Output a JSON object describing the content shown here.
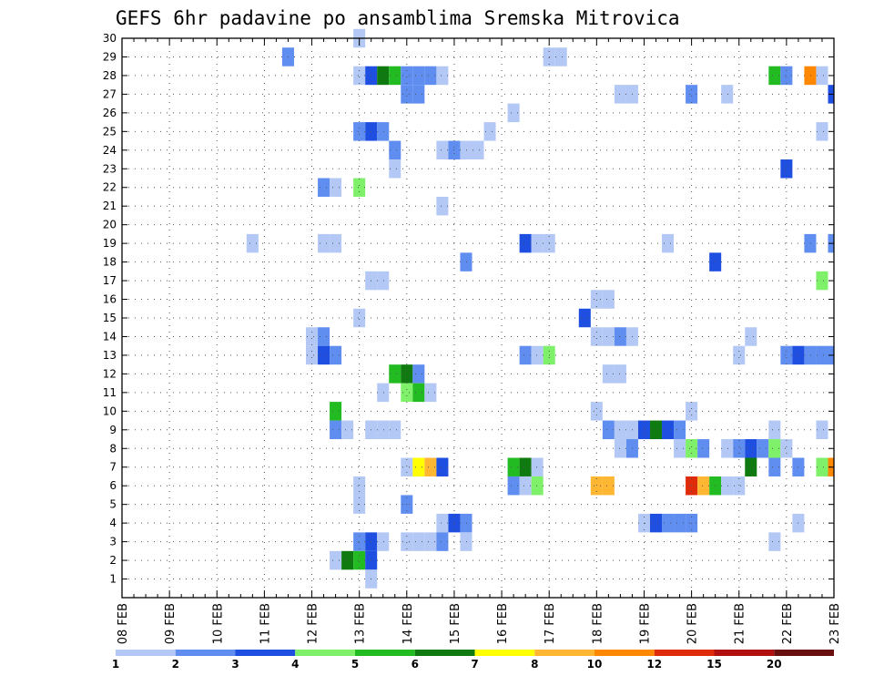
{
  "chart_data": {
    "type": "heatmap",
    "title": "GEFS 6hr padavine po ansamblima Sremska Mitrovica",
    "x_ticks": [
      "08 FEB",
      "09 FEB",
      "10 FEB",
      "11 FEB",
      "12 FEB",
      "13 FEB",
      "14 FEB",
      "15 FEB",
      "16 FEB",
      "17 FEB",
      "18 FEB",
      "19 FEB",
      "20 FEB",
      "21 FEB",
      "22 FEB",
      "23 FEB"
    ],
    "y_ticks": [
      1,
      2,
      3,
      4,
      5,
      6,
      7,
      8,
      9,
      10,
      11,
      12,
      13,
      14,
      15,
      16,
      17,
      18,
      19,
      20,
      21,
      22,
      23,
      24,
      25,
      26,
      27,
      28,
      29,
      30
    ],
    "x_range": [
      "08 FEB 00Z",
      "23 FEB 00Z"
    ],
    "x_step_hours": 6,
    "y_range": [
      0,
      30
    ],
    "grid": true,
    "colorbar": {
      "labels": [
        "1",
        "2",
        "3",
        "4",
        "5",
        "6",
        "7",
        "8",
        "10",
        "12",
        "15",
        "20"
      ],
      "bounds": [
        1,
        2,
        3,
        4,
        5,
        6,
        7,
        8,
        10,
        12,
        15,
        20,
        30
      ],
      "colors": [
        "#b4c8f5",
        "#5f8ef0",
        "#1e4fe0",
        "#7ff06a",
        "#22bb22",
        "#0f7a0f",
        "#ffff00",
        "#ffb733",
        "#ff8800",
        "#e02b0b",
        "#b01010",
        "#6a0f0f"
      ]
    },
    "cells": [
      {
        "m": 30,
        "t": 20,
        "v": 1.3
      },
      {
        "m": 29,
        "t": 14,
        "v": 2.5
      },
      {
        "m": 29,
        "t": 36,
        "v": 1.3
      },
      {
        "m": 29,
        "t": 37,
        "v": 1.3
      },
      {
        "m": 28,
        "t": 20,
        "v": 1.5
      },
      {
        "m": 28,
        "t": 21,
        "v": 3.3
      },
      {
        "m": 28,
        "t": 22,
        "v": 6.5
      },
      {
        "m": 28,
        "t": 23,
        "v": 5.5
      },
      {
        "m": 28,
        "t": 24,
        "v": 2.5
      },
      {
        "m": 28,
        "t": 25,
        "v": 2.5
      },
      {
        "m": 28,
        "t": 26,
        "v": 2.5
      },
      {
        "m": 28,
        "t": 27,
        "v": 1.3
      },
      {
        "m": 28,
        "t": 55,
        "v": 5.5
      },
      {
        "m": 28,
        "t": 56,
        "v": 2.5
      },
      {
        "m": 28,
        "t": 58,
        "v": 11
      },
      {
        "m": 28,
        "t": 59,
        "v": 1.3
      },
      {
        "m": 27,
        "t": 24,
        "v": 2.5
      },
      {
        "m": 27,
        "t": 25,
        "v": 2.5
      },
      {
        "m": 27,
        "t": 42,
        "v": 1.3
      },
      {
        "m": 27,
        "t": 43,
        "v": 1.3
      },
      {
        "m": 27,
        "t": 48,
        "v": 2.5
      },
      {
        "m": 27,
        "t": 51,
        "v": 1.3
      },
      {
        "m": 27,
        "t": 60,
        "v": 3.3
      },
      {
        "m": 26,
        "t": 33,
        "v": 1.3
      },
      {
        "m": 25,
        "t": 20,
        "v": 2.5
      },
      {
        "m": 25,
        "t": 21,
        "v": 3.3
      },
      {
        "m": 25,
        "t": 22,
        "v": 2.5
      },
      {
        "m": 25,
        "t": 31,
        "v": 1.3
      },
      {
        "m": 25,
        "t": 59,
        "v": 1.3
      },
      {
        "m": 24,
        "t": 23,
        "v": 2.5
      },
      {
        "m": 24,
        "t": 27,
        "v": 1.3
      },
      {
        "m": 24,
        "t": 28,
        "v": 2.5
      },
      {
        "m": 24,
        "t": 29,
        "v": 1.3
      },
      {
        "m": 24,
        "t": 30,
        "v": 1.3
      },
      {
        "m": 23,
        "t": 23,
        "v": 1.3
      },
      {
        "m": 23,
        "t": 56,
        "v": 3.3
      },
      {
        "m": 22,
        "t": 17,
        "v": 2.5
      },
      {
        "m": 22,
        "t": 18,
        "v": 1.3
      },
      {
        "m": 22,
        "t": 20,
        "v": 4.5
      },
      {
        "m": 21,
        "t": 27,
        "v": 1.3
      },
      {
        "m": 19,
        "t": 11,
        "v": 1.3
      },
      {
        "m": 19,
        "t": 17,
        "v": 1.3
      },
      {
        "m": 19,
        "t": 18,
        "v": 1.3
      },
      {
        "m": 19,
        "t": 34,
        "v": 3.3
      },
      {
        "m": 19,
        "t": 35,
        "v": 1.3
      },
      {
        "m": 19,
        "t": 36,
        "v": 1.3
      },
      {
        "m": 19,
        "t": 46,
        "v": 1.3
      },
      {
        "m": 19,
        "t": 58,
        "v": 2.5
      },
      {
        "m": 19,
        "t": 60,
        "v": 2.5
      },
      {
        "m": 18,
        "t": 29,
        "v": 2.5
      },
      {
        "m": 18,
        "t": 50,
        "v": 3.3
      },
      {
        "m": 17,
        "t": 21,
        "v": 1.3
      },
      {
        "m": 17,
        "t": 22,
        "v": 1.3
      },
      {
        "m": 17,
        "t": 59,
        "v": 4.5
      },
      {
        "m": 16,
        "t": 40,
        "v": 1.3
      },
      {
        "m": 16,
        "t": 41,
        "v": 1.3
      },
      {
        "m": 15,
        "t": 20,
        "v": 1.3
      },
      {
        "m": 15,
        "t": 39,
        "v": 3.3
      },
      {
        "m": 14,
        "t": 16,
        "v": 1.3
      },
      {
        "m": 14,
        "t": 17,
        "v": 2.5
      },
      {
        "m": 14,
        "t": 40,
        "v": 1.3
      },
      {
        "m": 14,
        "t": 41,
        "v": 1.3
      },
      {
        "m": 14,
        "t": 42,
        "v": 2.5
      },
      {
        "m": 14,
        "t": 43,
        "v": 1.3
      },
      {
        "m": 14,
        "t": 53,
        "v": 1.3
      },
      {
        "m": 13,
        "t": 16,
        "v": 1.3
      },
      {
        "m": 13,
        "t": 17,
        "v": 3.3
      },
      {
        "m": 13,
        "t": 18,
        "v": 2.5
      },
      {
        "m": 13,
        "t": 34,
        "v": 2.5
      },
      {
        "m": 13,
        "t": 35,
        "v": 1.3
      },
      {
        "m": 13,
        "t": 36,
        "v": 4.5
      },
      {
        "m": 13,
        "t": 52,
        "v": 1.3
      },
      {
        "m": 13,
        "t": 56,
        "v": 2.5
      },
      {
        "m": 13,
        "t": 57,
        "v": 3.3
      },
      {
        "m": 13,
        "t": 58,
        "v": 2.5
      },
      {
        "m": 13,
        "t": 59,
        "v": 2.5
      },
      {
        "m": 13,
        "t": 60,
        "v": 2.5
      },
      {
        "m": 12,
        "t": 23,
        "v": 5.5
      },
      {
        "m": 12,
        "t": 24,
        "v": 6.5
      },
      {
        "m": 12,
        "t": 25,
        "v": 2.5
      },
      {
        "m": 12,
        "t": 41,
        "v": 1.3
      },
      {
        "m": 12,
        "t": 42,
        "v": 1.3
      },
      {
        "m": 11,
        "t": 22,
        "v": 1.3
      },
      {
        "m": 11,
        "t": 24,
        "v": 4.5
      },
      {
        "m": 11,
        "t": 25,
        "v": 5.5
      },
      {
        "m": 11,
        "t": 26,
        "v": 1.3
      },
      {
        "m": 10,
        "t": 18,
        "v": 5.5
      },
      {
        "m": 10,
        "t": 40,
        "v": 1.3
      },
      {
        "m": 10,
        "t": 48,
        "v": 1.3
      },
      {
        "m": 9,
        "t": 18,
        "v": 2.5
      },
      {
        "m": 9,
        "t": 19,
        "v": 1.3
      },
      {
        "m": 9,
        "t": 21,
        "v": 1.3
      },
      {
        "m": 9,
        "t": 22,
        "v": 1.3
      },
      {
        "m": 9,
        "t": 23,
        "v": 1.3
      },
      {
        "m": 9,
        "t": 41,
        "v": 2.5
      },
      {
        "m": 9,
        "t": 42,
        "v": 1.3
      },
      {
        "m": 9,
        "t": 43,
        "v": 1.3
      },
      {
        "m": 9,
        "t": 44,
        "v": 3.3
      },
      {
        "m": 9,
        "t": 45,
        "v": 6.5
      },
      {
        "m": 9,
        "t": 46,
        "v": 3.3
      },
      {
        "m": 9,
        "t": 47,
        "v": 2.5
      },
      {
        "m": 9,
        "t": 55,
        "v": 1.3
      },
      {
        "m": 9,
        "t": 59,
        "v": 1.3
      },
      {
        "m": 8,
        "t": 42,
        "v": 1.3
      },
      {
        "m": 8,
        "t": 43,
        "v": 2.5
      },
      {
        "m": 8,
        "t": 47,
        "v": 1.3
      },
      {
        "m": 8,
        "t": 48,
        "v": 4.5
      },
      {
        "m": 8,
        "t": 49,
        "v": 2.5
      },
      {
        "m": 8,
        "t": 51,
        "v": 1.3
      },
      {
        "m": 8,
        "t": 52,
        "v": 2.5
      },
      {
        "m": 8,
        "t": 53,
        "v": 3.3
      },
      {
        "m": 8,
        "t": 54,
        "v": 2.5
      },
      {
        "m": 8,
        "t": 55,
        "v": 4.5
      },
      {
        "m": 8,
        "t": 56,
        "v": 1.3
      },
      {
        "m": 7,
        "t": 24,
        "v": 1.3
      },
      {
        "m": 7,
        "t": 25,
        "v": 7.5
      },
      {
        "m": 7,
        "t": 26,
        "v": 9
      },
      {
        "m": 7,
        "t": 27,
        "v": 3.3
      },
      {
        "m": 7,
        "t": 33,
        "v": 5.5
      },
      {
        "m": 7,
        "t": 34,
        "v": 6.5
      },
      {
        "m": 7,
        "t": 35,
        "v": 1.3
      },
      {
        "m": 7,
        "t": 53,
        "v": 6.5
      },
      {
        "m": 7,
        "t": 55,
        "v": 2.5
      },
      {
        "m": 7,
        "t": 57,
        "v": 2.5
      },
      {
        "m": 7,
        "t": 59,
        "v": 4.5
      },
      {
        "m": 7,
        "t": 60,
        "v": 11
      },
      {
        "m": 6,
        "t": 20,
        "v": 1.3
      },
      {
        "m": 6,
        "t": 33,
        "v": 2.5
      },
      {
        "m": 6,
        "t": 34,
        "v": 1.3
      },
      {
        "m": 6,
        "t": 35,
        "v": 4.5
      },
      {
        "m": 6,
        "t": 40,
        "v": 9
      },
      {
        "m": 6,
        "t": 41,
        "v": 9
      },
      {
        "m": 6,
        "t": 48,
        "v": 13
      },
      {
        "m": 6,
        "t": 49,
        "v": 9
      },
      {
        "m": 6,
        "t": 50,
        "v": 5.5
      },
      {
        "m": 6,
        "t": 51,
        "v": 1.3
      },
      {
        "m": 6,
        "t": 52,
        "v": 1.3
      },
      {
        "m": 5,
        "t": 20,
        "v": 1.3
      },
      {
        "m": 5,
        "t": 24,
        "v": 2.5
      },
      {
        "m": 4,
        "t": 27,
        "v": 1.3
      },
      {
        "m": 4,
        "t": 28,
        "v": 3.3
      },
      {
        "m": 4,
        "t": 29,
        "v": 2.5
      },
      {
        "m": 4,
        "t": 44,
        "v": 1.3
      },
      {
        "m": 4,
        "t": 45,
        "v": 3.3
      },
      {
        "m": 4,
        "t": 46,
        "v": 2.5
      },
      {
        "m": 4,
        "t": 47,
        "v": 2.5
      },
      {
        "m": 4,
        "t": 48,
        "v": 2.5
      },
      {
        "m": 4,
        "t": 57,
        "v": 1.3
      },
      {
        "m": 3,
        "t": 20,
        "v": 2.5
      },
      {
        "m": 3,
        "t": 21,
        "v": 3.3
      },
      {
        "m": 3,
        "t": 22,
        "v": 1.3
      },
      {
        "m": 3,
        "t": 24,
        "v": 1.3
      },
      {
        "m": 3,
        "t": 25,
        "v": 1.3
      },
      {
        "m": 3,
        "t": 26,
        "v": 1.3
      },
      {
        "m": 3,
        "t": 27,
        "v": 2.5
      },
      {
        "m": 3,
        "t": 29,
        "v": 1.3
      },
      {
        "m": 3,
        "t": 55,
        "v": 1.3
      },
      {
        "m": 2,
        "t": 18,
        "v": 1.3
      },
      {
        "m": 2,
        "t": 19,
        "v": 6.5
      },
      {
        "m": 2,
        "t": 20,
        "v": 5.5
      },
      {
        "m": 2,
        "t": 21,
        "v": 3.3
      },
      {
        "m": 1,
        "t": 21,
        "v": 1.3
      }
    ]
  }
}
